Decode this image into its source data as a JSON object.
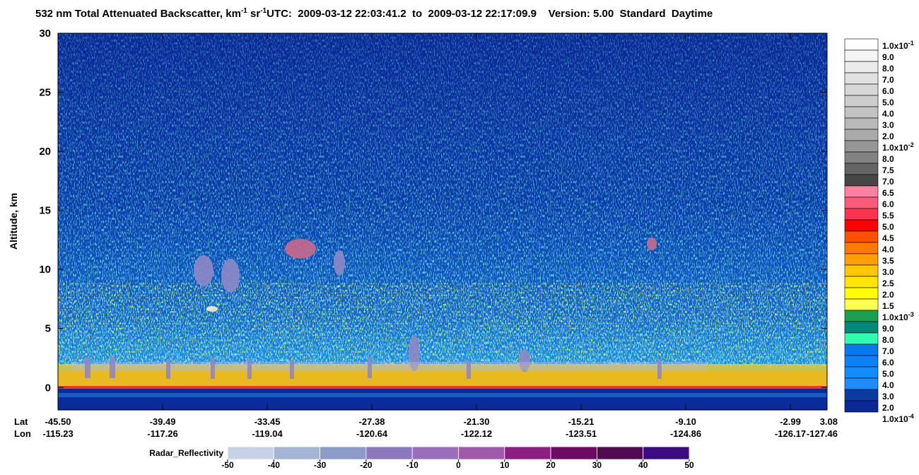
{
  "chart_data": {
    "type": "heatmap",
    "title": {
      "text": "532 nm Total Attenuated Backscatter, km",
      "sup_1": "-1",
      "unit_2": " sr",
      "sup_2": "-1"
    },
    "subtitle": "UTC:  2009-03-12 22:03:41.2  to  2009-03-12 22:17:09.9    Version: 5.00  Standard  Daytime",
    "ylabel": "Altitude, km",
    "ylim": [
      -1.9,
      30
    ],
    "yticks": [
      0,
      5,
      10,
      15,
      20,
      25,
      30
    ],
    "x_rows": [
      {
        "label": "Lat",
        "values": [
          "-45.50",
          "-39.49",
          "-33.45",
          "-27.38",
          "-21.30",
          "-15.21",
          "-9.10",
          "-2.99",
          "3.08"
        ]
      },
      {
        "label": "Lon",
        "values": [
          "-115.23",
          "-117.26",
          "-119.04",
          "-120.64",
          "-122.12",
          "-123.51",
          "-124.86",
          "-126.17",
          "-127.46"
        ]
      }
    ],
    "colorbar": {
      "levels": [
        {
          "label": "1.0x10",
          "exp": "-1"
        },
        {
          "label": "9.0"
        },
        {
          "label": "8.0"
        },
        {
          "label": "7.0"
        },
        {
          "label": "6.0"
        },
        {
          "label": "5.0"
        },
        {
          "label": "4.0"
        },
        {
          "label": "3.0"
        },
        {
          "label": "2.0"
        },
        {
          "label": "1.0x10",
          "exp": "-2"
        },
        {
          "label": "8.0"
        },
        {
          "label": "7.5"
        },
        {
          "label": "7.0"
        },
        {
          "label": "6.5"
        },
        {
          "label": "6.0"
        },
        {
          "label": "5.5"
        },
        {
          "label": "5.0"
        },
        {
          "label": "4.5"
        },
        {
          "label": "4.0"
        },
        {
          "label": "3.5"
        },
        {
          "label": "3.0"
        },
        {
          "label": "2.5"
        },
        {
          "label": "2.0"
        },
        {
          "label": "1.5"
        },
        {
          "label": "1.0x10",
          "exp": "-3"
        },
        {
          "label": "9.0"
        },
        {
          "label": "8.0"
        },
        {
          "label": "7.0"
        },
        {
          "label": "6.0"
        },
        {
          "label": "5.0"
        },
        {
          "label": "4.0"
        },
        {
          "label": "3.0"
        },
        {
          "label": "2.0"
        },
        {
          "label": "1.0x10",
          "exp": "-4"
        }
      ],
      "colors": [
        "#ffffff",
        "#f5f5f5",
        "#ebebeb",
        "#e1e1e1",
        "#d7d7d7",
        "#cdcdcd",
        "#c3c3c3",
        "#b9b9b9",
        "#aaaaaa",
        "#969696",
        "#828282",
        "#646464",
        "#464646",
        "#ff80a0",
        "#ff5a7a",
        "#ff3050",
        "#ff0000",
        "#ff5000",
        "#ff7a00",
        "#ffa000",
        "#ffc800",
        "#ffe600",
        "#ffff00",
        "#ffff50",
        "#1aa050",
        "#008878",
        "#30ffb0",
        "#0a78f0",
        "#0a82f5",
        "#148cff",
        "#1e8cff",
        "#0a3ca0",
        "#0a2896"
      ]
    },
    "radar_colorbar": {
      "label": "Radar_Reflectivity",
      "lim": [
        -50,
        50
      ],
      "ticks": [
        -50,
        -40,
        -30,
        -20,
        -10,
        0,
        10,
        20,
        30,
        40,
        50
      ],
      "colors": [
        "#c8d2e6",
        "#a5b4d2",
        "#8c9bc8",
        "#8c78be",
        "#9b6eb9",
        "#a05aaa",
        "#8c1e82",
        "#6e0a64",
        "#500a50",
        "#3c0a82"
      ]
    }
  }
}
